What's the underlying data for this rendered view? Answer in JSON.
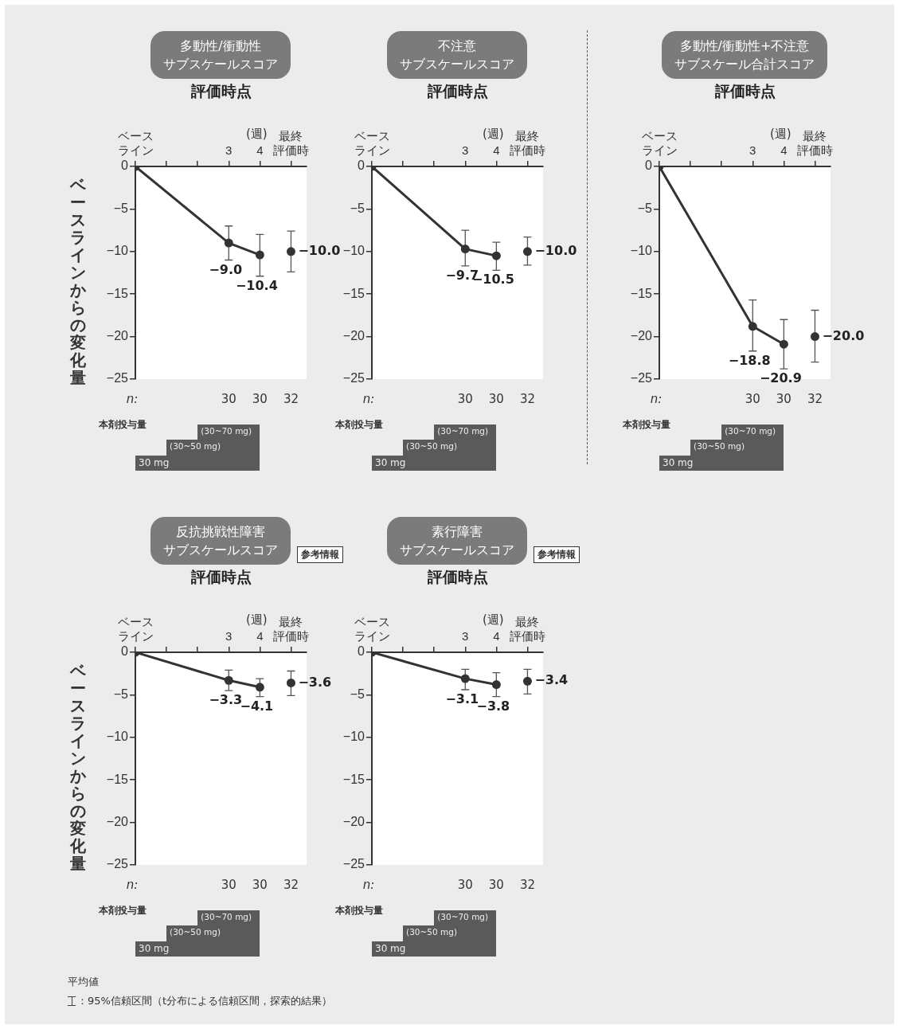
{
  "chart_data": [
    {
      "type": "line",
      "title": "多動性/衝動性",
      "subtitle": "サブスケールスコア",
      "xlabel": "評価時点",
      "ylabel": "ベースラインからの変化量",
      "xlim": [
        0,
        5.5
      ],
      "xticks": [
        {
          "value": 0,
          "label": "ベースライン"
        },
        {
          "value": 1,
          "label": null
        },
        {
          "value": 2,
          "label": null
        },
        {
          "value": 3,
          "label": "3"
        },
        {
          "value": 4,
          "label": "4"
        },
        {
          "value": 5,
          "label": "最終評価時"
        }
      ],
      "ylim": [
        -25,
        0
      ],
      "yticks": [
        0,
        -5,
        -10,
        -15,
        -20,
        -25
      ],
      "marker": "circle",
      "series": [
        {
          "type": "line",
          "color": "#333333",
          "x": [
            0,
            3,
            4
          ],
          "values": [
            0,
            -9.0,
            -10.4
          ],
          "errors": [
            null,
            [
              -11.0,
              -7.0
            ],
            [
              -12.9,
              -8.0
            ]
          ],
          "value_labels": [
            null,
            "−9.0",
            "−10.4"
          ]
        },
        {
          "type": "scatter",
          "color": "#333333",
          "x": [
            5
          ],
          "values": [
            -10.0
          ],
          "errors": [
            [
              -12.4,
              -7.6
            ]
          ],
          "value_labels": [
            "−10.0"
          ]
        }
      ],
      "annotations": [
        "(週)",
        "n:",
        "30",
        "30",
        "32",
        "本剤投与量",
        "30 mg",
        "(30~50 mg)",
        "(30~70 mg)"
      ]
    },
    {
      "type": "line",
      "title": "不注意",
      "subtitle": "サブスケールスコア",
      "xlabel": "評価時点",
      "xlim": [
        0,
        5.5
      ],
      "xticks": [
        {
          "value": 0,
          "label": "ベースライン"
        },
        {
          "value": 1,
          "label": null
        },
        {
          "value": 2,
          "label": null
        },
        {
          "value": 3,
          "label": "3"
        },
        {
          "value": 4,
          "label": "4"
        },
        {
          "value": 5,
          "label": "最終評価時"
        }
      ],
      "ylim": [
        -25,
        0
      ],
      "yticks": [
        0,
        -5,
        -10,
        -15,
        -20,
        -25
      ],
      "marker": "circle",
      "series": [
        {
          "type": "line",
          "color": "#333333",
          "x": [
            0,
            3,
            4
          ],
          "values": [
            0,
            -9.7,
            -10.5
          ],
          "errors": [
            null,
            [
              -11.7,
              -7.5
            ],
            [
              -12.2,
              -8.9
            ]
          ],
          "value_labels": [
            null,
            "−9.7",
            "−10.5"
          ]
        },
        {
          "type": "scatter",
          "color": "#333333",
          "x": [
            5
          ],
          "values": [
            -10.0
          ],
          "errors": [
            [
              -11.6,
              -8.3
            ]
          ],
          "value_labels": [
            "−10.0"
          ]
        }
      ],
      "annotations": [
        "(週)",
        "n:",
        "30",
        "30",
        "32",
        "本剤投与量",
        "30 mg",
        "(30~50 mg)",
        "(30~70 mg)"
      ]
    },
    {
      "type": "line",
      "title": "多動性/衝動性+不注意",
      "subtitle": "サブスケール合計スコア",
      "xlabel": "評価時点",
      "xlim": [
        0,
        5.5
      ],
      "xticks": [
        {
          "value": 0,
          "label": "ベースライン"
        },
        {
          "value": 1,
          "label": null
        },
        {
          "value": 2,
          "label": null
        },
        {
          "value": 3,
          "label": "3"
        },
        {
          "value": 4,
          "label": "4"
        },
        {
          "value": 5,
          "label": "最終評価時"
        }
      ],
      "ylim": [
        -25,
        0
      ],
      "yticks": [
        0,
        -5,
        -10,
        -15,
        -20,
        -25
      ],
      "marker": "circle",
      "series": [
        {
          "type": "line",
          "color": "#333333",
          "x": [
            0,
            3,
            4
          ],
          "values": [
            0,
            -18.8,
            -20.9
          ],
          "errors": [
            null,
            [
              -21.7,
              -15.7
            ],
            [
              -23.8,
              -18.0
            ]
          ],
          "value_labels": [
            null,
            "−18.8",
            "−20.9"
          ]
        },
        {
          "type": "scatter",
          "color": "#333333",
          "x": [
            5
          ],
          "values": [
            -20.0
          ],
          "errors": [
            [
              -23.0,
              -16.9
            ]
          ],
          "value_labels": [
            "−20.0"
          ]
        }
      ],
      "annotations": [
        "(週)",
        "n:",
        "30",
        "30",
        "32",
        "本剤投与量",
        "30 mg",
        "(30~50 mg)",
        "(30~70 mg)"
      ]
    },
    {
      "type": "line",
      "title": "反抗挑戦性障害",
      "subtitle": "サブスケールスコア",
      "xlabel": "評価時点",
      "ylabel": "ベースラインからの変化量",
      "xlim": [
        0,
        5.5
      ],
      "xticks": [
        {
          "value": 0,
          "label": "ベースライン"
        },
        {
          "value": 1,
          "label": null
        },
        {
          "value": 2,
          "label": null
        },
        {
          "value": 3,
          "label": "3"
        },
        {
          "value": 4,
          "label": "4"
        },
        {
          "value": 5,
          "label": "最終評価時"
        }
      ],
      "ylim": [
        -25,
        0
      ],
      "yticks": [
        0,
        -5,
        -10,
        -15,
        -20,
        -25
      ],
      "marker": "circle",
      "series": [
        {
          "type": "line",
          "color": "#333333",
          "x": [
            0,
            3,
            4
          ],
          "values": [
            0,
            -3.3,
            -4.1
          ],
          "errors": [
            null,
            [
              -4.5,
              -2.1
            ],
            [
              -5.2,
              -3.1
            ]
          ],
          "value_labels": [
            null,
            "−3.3",
            "−4.1"
          ]
        },
        {
          "type": "scatter",
          "color": "#333333",
          "x": [
            5
          ],
          "values": [
            -3.6
          ],
          "errors": [
            [
              -5.1,
              -2.2
            ]
          ],
          "value_labels": [
            "−3.6"
          ]
        }
      ],
      "annotations": [
        "(週)",
        "n:",
        "30",
        "30",
        "32",
        "本剤投与量",
        "30 mg",
        "(30~50 mg)",
        "(30~70 mg)",
        "参考情報",
        "平均値",
        "：95%信頼区間（t分布による信頼区間，探索的結果）"
      ]
    },
    {
      "type": "line",
      "title": "素行障害",
      "subtitle": "サブスケールスコア",
      "xlabel": "評価時点",
      "xlim": [
        0,
        5.5
      ],
      "xticks": [
        {
          "value": 0,
          "label": "ベースライン"
        },
        {
          "value": 1,
          "label": null
        },
        {
          "value": 2,
          "label": null
        },
        {
          "value": 3,
          "label": "3"
        },
        {
          "value": 4,
          "label": "4"
        },
        {
          "value": 5,
          "label": "最終評価時"
        }
      ],
      "ylim": [
        -25,
        0
      ],
      "yticks": [
        0,
        -5,
        -10,
        -15,
        -20,
        -25
      ],
      "marker": "circle",
      "series": [
        {
          "type": "line",
          "color": "#333333",
          "x": [
            0,
            3,
            4
          ],
          "values": [
            0,
            -3.1,
            -3.8
          ],
          "errors": [
            null,
            [
              -4.4,
              -2.0
            ],
            [
              -5.2,
              -2.4
            ]
          ],
          "value_labels": [
            null,
            "−3.1",
            "−3.8"
          ]
        },
        {
          "type": "scatter",
          "color": "#333333",
          "x": [
            5
          ],
          "values": [
            -3.4
          ],
          "errors": [
            [
              -4.9,
              -2.0
            ]
          ],
          "value_labels": [
            "−3.4"
          ]
        }
      ],
      "annotations": [
        "(週)",
        "n:",
        "30",
        "30",
        "32",
        "本剤投与量",
        "30 mg",
        "(30~50 mg)",
        "(30~70 mg)",
        "参考情報"
      ]
    }
  ]
}
